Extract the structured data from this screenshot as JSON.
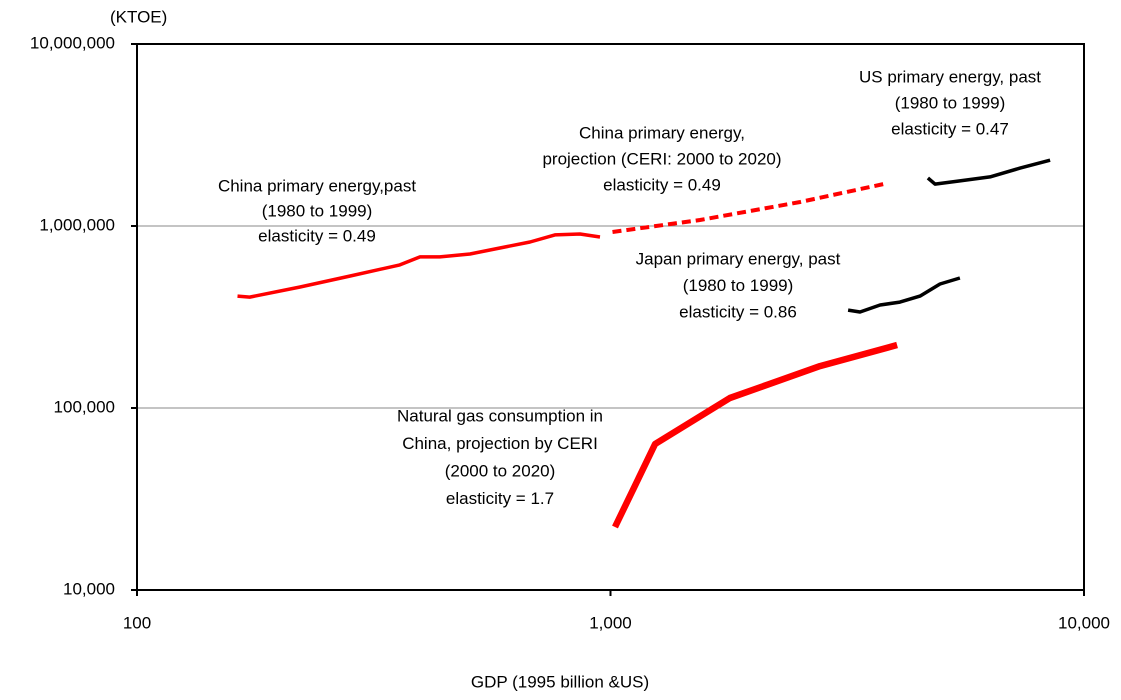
{
  "chart_data": {
    "type": "line",
    "y_axis_label": "(KTOE)",
    "x_axis_label": "GDP (1995 billion &US)",
    "xlog": true,
    "ylog": true,
    "grid": true,
    "xlim": [
      100,
      10000
    ],
    "xticks": [
      100,
      {
        "value": 1000,
        "label": "1,000"
      },
      {
        "value": 10000,
        "label": "10,000"
      }
    ],
    "ylim": [
      10000,
      10000000
    ],
    "yticks": [
      {
        "value": 10000,
        "label": "10,000"
      },
      {
        "value": 100000,
        "label": "100,000"
      },
      {
        "value": 1000000,
        "label": "1,000,000"
      },
      {
        "value": 10000000,
        "label": "10,000,000"
      }
    ],
    "series": [
      {
        "color": "#ff0000",
        "x": [
          163,
          173,
          221,
          282,
          359,
          396,
          436,
          505,
          584,
          676,
          763,
          862,
          950
        ],
        "values": [
          412000,
          407000,
          462000,
          531000,
          611000,
          676000,
          676000,
          702000,
          757000,
          817000,
          893000,
          904000,
          870000
        ]
      },
      {
        "color": "#ff0000",
        "dashed": true,
        "x": [
          1010,
          1545,
          2515,
          3855
        ],
        "values": [
          927000,
          1079000,
          1355000,
          1720000
        ]
      },
      {
        "color": "#000000",
        "x": [
          4680,
          4845,
          5470,
          6330,
          7330,
          8480
        ],
        "values": [
          1835000,
          1700000,
          1770000,
          1860000,
          2080000,
          2300000
        ]
      },
      {
        "color": "#000000",
        "x": [
          3175,
          3365,
          3710,
          4085,
          4505,
          4965,
          5470
        ],
        "values": [
          345000,
          337000,
          368000,
          382000,
          412000,
          480000,
          518000
        ]
      },
      {
        "color": "#ff0000",
        "x": [
          1022,
          1242,
          1787,
          2770,
          4030
        ],
        "values": [
          22200,
          63400,
          113500,
          170000,
          222000
        ]
      }
    ],
    "annotations": [
      [
        "China primary energy,past",
        "(1980 to 1999)",
        "elasticity = 0.49"
      ],
      [
        "China primary energy,",
        "projection (CERI: 2000 to 2020)",
        "elasticity = 0.49"
      ],
      [
        "US primary energy, past",
        "(1980 to 1999)",
        "elasticity = 0.47"
      ],
      [
        "Japan primary energy, past",
        "(1980 to 1999)",
        "elasticity = 0.86"
      ],
      [
        "Natural gas consumption in",
        "China, projection by CERI",
        "(2000 to 2020)",
        "elasticity = 1.7"
      ]
    ]
  }
}
